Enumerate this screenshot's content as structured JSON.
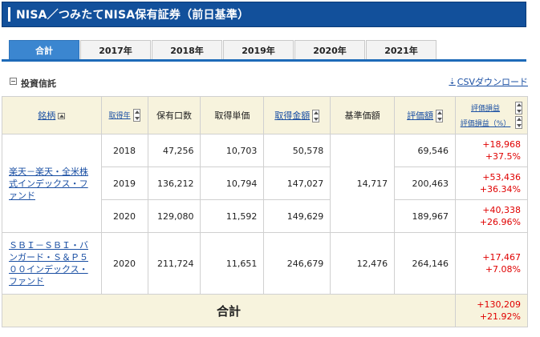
{
  "header": {
    "title": "NISA／つみたてNISA保有証券（前日基準）"
  },
  "tabs": [
    {
      "label": "合計",
      "active": true
    },
    {
      "label": "2017年",
      "active": false
    },
    {
      "label": "2018年",
      "active": false
    },
    {
      "label": "2019年",
      "active": false
    },
    {
      "label": "2020年",
      "active": false
    },
    {
      "label": "2021年",
      "active": false
    }
  ],
  "section": {
    "label": "投資信託"
  },
  "csv": {
    "label": "CSVダウンロード"
  },
  "columns": {
    "name": "銘柄",
    "year": "取得年",
    "qty": "保有口数",
    "unit": "取得単価",
    "amount": "取得金額",
    "base": "基準価額",
    "value": "評価額",
    "pl": "評価損益",
    "pl_pct": "評価損益（%）"
  },
  "funds": [
    {
      "name": "楽天－楽天・全米株式インデックス・ファンド",
      "base": "14,717",
      "rows": [
        {
          "year": "2018",
          "qty": "47,256",
          "unit": "10,703",
          "amount": "50,578",
          "value": "69,546",
          "pl": "+18,968",
          "pl_pct": "+37.5%"
        },
        {
          "year": "2019",
          "qty": "136,212",
          "unit": "10,794",
          "amount": "147,027",
          "value": "200,463",
          "pl": "+53,436",
          "pl_pct": "+36.34%"
        },
        {
          "year": "2020",
          "qty": "129,080",
          "unit": "11,592",
          "amount": "149,629",
          "value": "189,967",
          "pl": "+40,338",
          "pl_pct": "+26.96%"
        }
      ]
    },
    {
      "name": "ＳＢＩ－ＳＢＩ・バンガード・Ｓ＆Ｐ５００インデックス・ファンド",
      "base": "12,476",
      "rows": [
        {
          "year": "2020",
          "qty": "211,724",
          "unit": "11,651",
          "amount": "246,679",
          "value": "264,146",
          "pl": "+17,467",
          "pl_pct": "+7.08%"
        }
      ]
    }
  ],
  "total": {
    "label": "合計",
    "pl": "+130,209",
    "pl_pct": "+21.92%"
  },
  "colors": {
    "header_bg": "#12509b",
    "tab_active": "#3b86d0",
    "table_head": "#f7f3dd",
    "gain": "#e00000",
    "link": "#1a4fa3"
  }
}
